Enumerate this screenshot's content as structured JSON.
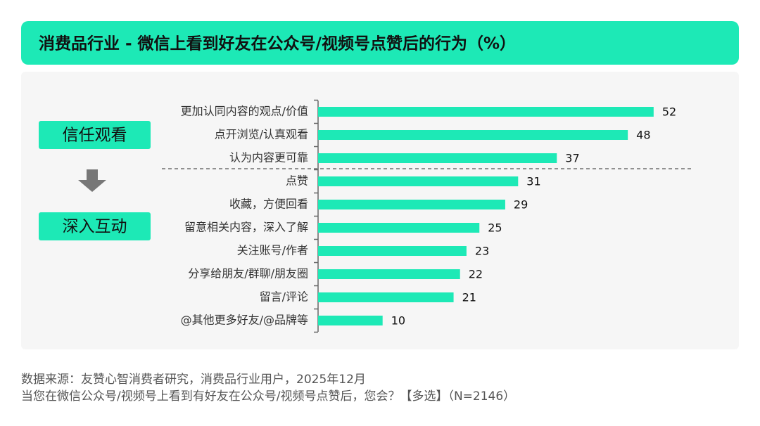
{
  "chart_data": {
    "type": "bar",
    "orientation": "horizontal",
    "title": "消费品行业 - 微信上看到好友在公众号/视频号点赞后的行为（%）",
    "categories": [
      "更加认同内容的观点/价值",
      "点开浏览/认真观看",
      "认为内容更可靠",
      "点赞",
      "收藏，方便回看",
      "留意相关内容，深入了解",
      "关注账号/作者",
      "分享给朋友/群聊/朋友圈",
      "留言/评论",
      "@其他更多好友/@品牌等"
    ],
    "values": [
      52,
      48,
      37,
      31,
      29,
      25,
      23,
      22,
      21,
      10
    ],
    "color": "#1de9b6",
    "annotations": [
      "信任观看",
      "深入互动"
    ],
    "notes": [
      "数据来源：友赞心智消费者研究，消费品行业用户，2025年12月",
      "当您在微信公众号/视频号上看到有好友在公众号/视频号点赞后，您会？【多选】（N=2146）"
    ]
  }
}
